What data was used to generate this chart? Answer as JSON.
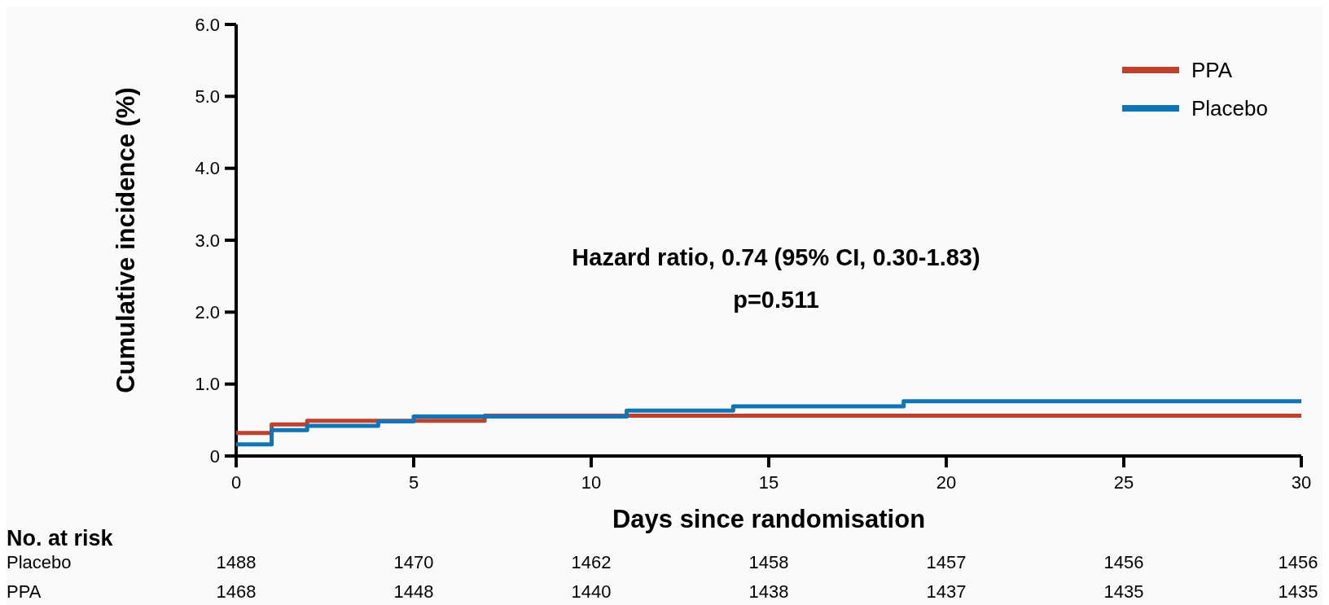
{
  "chart_data": {
    "type": "step",
    "xlabel": "Days since randomisation",
    "ylabel": "Cumulative incidence (%)",
    "xlim": [
      0,
      30
    ],
    "ylim": [
      0,
      6
    ],
    "xticks": [
      0,
      5,
      10,
      15,
      20,
      25,
      30
    ],
    "yticks": [
      0,
      {
        "value": 1,
        "label": "1.0"
      },
      {
        "value": 2,
        "label": "2.0"
      },
      {
        "value": 3,
        "label": "3.0"
      },
      {
        "value": 4,
        "label": "4.0"
      },
      {
        "value": 5,
        "label": "5.0"
      },
      {
        "value": 6,
        "label": "6.0"
      }
    ],
    "grid": false,
    "legend": "top right",
    "line_style": "solid",
    "marker": "none",
    "series": [
      {
        "name": "PPA",
        "color": "#c0402e",
        "x": [
          0,
          1,
          2,
          7,
          30
        ],
        "values": [
          0.32,
          0.44,
          0.49,
          0.56,
          0.56
        ]
      },
      {
        "name": "Placebo",
        "color": "#0f74b8",
        "x": [
          0,
          1,
          2,
          4,
          5,
          11,
          14,
          18.8,
          30
        ],
        "values": [
          0.16,
          0.36,
          0.42,
          0.48,
          0.55,
          0.63,
          0.69,
          0.76,
          0.76
        ]
      }
    ],
    "annotations": [
      "Hazard ratio, 0.74 (95% CI, 0.30-1.83)",
      "p=0.511",
      "No. at risk",
      "Placebo",
      "1488",
      "1470",
      "1462",
      "1458",
      "1457",
      "1456",
      "1456",
      "PPA",
      "1468",
      "1448",
      "1440",
      "1438",
      "1437",
      "1435",
      "1435"
    ]
  }
}
